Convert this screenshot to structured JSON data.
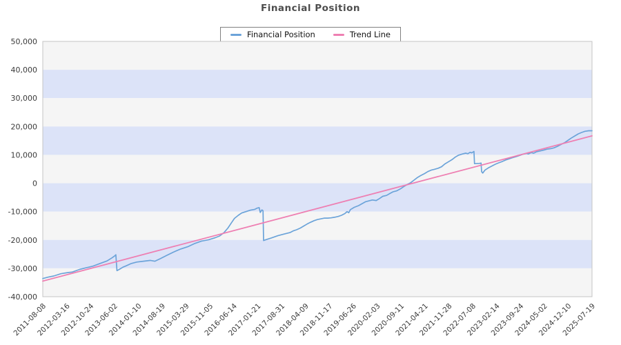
{
  "title": "Financial Position",
  "legend": {
    "items": [
      {
        "label": "Financial Position",
        "color": "#6BA3D9"
      },
      {
        "label": "Trend Line",
        "color": "#EE7FB2"
      }
    ]
  },
  "style": {
    "background": "#ffffff",
    "band_color_light": "#f5f5f5",
    "band_color_blue": "#dce3f8",
    "plot_border_color": "#c4c4c4",
    "axis_text_color": "#3a3a3a",
    "title_color": "#4d4d4d",
    "legend_border_color": "#7f7f7f"
  },
  "chart_data": {
    "type": "line",
    "title": "Financial Position",
    "xlabel": "",
    "ylabel": "",
    "grid": "alternating horizontal bands",
    "legend_position": "top-center",
    "ylim": [
      -40000,
      50000
    ],
    "y_tick_values": [
      50000,
      40000,
      30000,
      20000,
      10000,
      0,
      -10000,
      -20000,
      -30000,
      -40000
    ],
    "y_tick_labels": [
      "50,000",
      "40,000",
      "30,000",
      "20,000",
      "10,000",
      "0",
      "-10,000",
      "-20,000",
      "-30,000",
      "-40,000"
    ],
    "x_tick_labels": [
      "2011-08-08",
      "2012-03-16",
      "2012-10-24",
      "2013-06-02",
      "2014-01-10",
      "2014-08-19",
      "2015-03-29",
      "2015-11-05",
      "2016-06-14",
      "2017-01-21",
      "2017-08-31",
      "2018-04-09",
      "2018-11-17",
      "2019-06-26",
      "2020-02-03",
      "2020-09-11",
      "2021-04-21",
      "2021-11-28",
      "2022-07-08",
      "2023-02-14",
      "2023-09-24",
      "2024-05-02",
      "2024-12-10",
      "2025-07-19"
    ],
    "x_axis_note": "series x values are fractions of the date range 2011-08-08 (0.0) to 2025-07-19 (1.0)",
    "series": [
      {
        "name": "Financial Position",
        "color": "#6BA3D9",
        "width": 1.7,
        "points": [
          [
            0.0,
            -33600
          ],
          [
            0.01,
            -33100
          ],
          [
            0.02,
            -32700
          ],
          [
            0.033,
            -31900
          ],
          [
            0.045,
            -31500
          ],
          [
            0.054,
            -31300
          ],
          [
            0.067,
            -30400
          ],
          [
            0.079,
            -29800
          ],
          [
            0.092,
            -29200
          ],
          [
            0.104,
            -28300
          ],
          [
            0.117,
            -27400
          ],
          [
            0.126,
            -26300
          ],
          [
            0.131,
            -25600
          ],
          [
            0.133,
            -25200
          ],
          [
            0.135,
            -30800
          ],
          [
            0.14,
            -30300
          ],
          [
            0.146,
            -29600
          ],
          [
            0.152,
            -29100
          ],
          [
            0.161,
            -28300
          ],
          [
            0.171,
            -27800
          ],
          [
            0.183,
            -27500
          ],
          [
            0.196,
            -27200
          ],
          [
            0.204,
            -27500
          ],
          [
            0.214,
            -26600
          ],
          [
            0.226,
            -25400
          ],
          [
            0.239,
            -24200
          ],
          [
            0.251,
            -23200
          ],
          [
            0.264,
            -22400
          ],
          [
            0.276,
            -21300
          ],
          [
            0.289,
            -20400
          ],
          [
            0.302,
            -19900
          ],
          [
            0.314,
            -19200
          ],
          [
            0.322,
            -18600
          ],
          [
            0.33,
            -17400
          ],
          [
            0.337,
            -15800
          ],
          [
            0.344,
            -13800
          ],
          [
            0.349,
            -12400
          ],
          [
            0.356,
            -11300
          ],
          [
            0.362,
            -10500
          ],
          [
            0.37,
            -10000
          ],
          [
            0.378,
            -9500
          ],
          [
            0.386,
            -9200
          ],
          [
            0.39,
            -8800
          ],
          [
            0.394,
            -8600
          ],
          [
            0.396,
            -10300
          ],
          [
            0.399,
            -9400
          ],
          [
            0.401,
            -9700
          ],
          [
            0.402,
            -20200
          ],
          [
            0.406,
            -19900
          ],
          [
            0.416,
            -19300
          ],
          [
            0.428,
            -18500
          ],
          [
            0.44,
            -17900
          ],
          [
            0.45,
            -17400
          ],
          [
            0.456,
            -16800
          ],
          [
            0.462,
            -16400
          ],
          [
            0.469,
            -15800
          ],
          [
            0.475,
            -15100
          ],
          [
            0.481,
            -14400
          ],
          [
            0.487,
            -13800
          ],
          [
            0.494,
            -13200
          ],
          [
            0.5,
            -12800
          ],
          [
            0.513,
            -12300
          ],
          [
            0.519,
            -12300
          ],
          [
            0.525,
            -12200
          ],
          [
            0.531,
            -12000
          ],
          [
            0.538,
            -11700
          ],
          [
            0.544,
            -11300
          ],
          [
            0.55,
            -10700
          ],
          [
            0.554,
            -10000
          ],
          [
            0.557,
            -10400
          ],
          [
            0.56,
            -9300
          ],
          [
            0.567,
            -8500
          ],
          [
            0.575,
            -7900
          ],
          [
            0.588,
            -6500
          ],
          [
            0.6,
            -5900
          ],
          [
            0.607,
            -6100
          ],
          [
            0.613,
            -5400
          ],
          [
            0.619,
            -4600
          ],
          [
            0.626,
            -4300
          ],
          [
            0.632,
            -3600
          ],
          [
            0.638,
            -3000
          ],
          [
            0.644,
            -2700
          ],
          [
            0.651,
            -2000
          ],
          [
            0.657,
            -1200
          ],
          [
            0.663,
            -500
          ],
          [
            0.67,
            200
          ],
          [
            0.676,
            1100
          ],
          [
            0.682,
            2000
          ],
          [
            0.688,
            2700
          ],
          [
            0.695,
            3400
          ],
          [
            0.701,
            4100
          ],
          [
            0.707,
            4600
          ],
          [
            0.713,
            4900
          ],
          [
            0.72,
            5300
          ],
          [
            0.726,
            5800
          ],
          [
            0.732,
            6800
          ],
          [
            0.739,
            7600
          ],
          [
            0.745,
            8300
          ],
          [
            0.751,
            9200
          ],
          [
            0.757,
            9900
          ],
          [
            0.764,
            10300
          ],
          [
            0.77,
            10600
          ],
          [
            0.774,
            10400
          ],
          [
            0.778,
            10900
          ],
          [
            0.781,
            10700
          ],
          [
            0.785,
            11200
          ],
          [
            0.786,
            6900
          ],
          [
            0.795,
            7000
          ],
          [
            0.798,
            7100
          ],
          [
            0.799,
            4100
          ],
          [
            0.801,
            3600
          ],
          [
            0.805,
            4600
          ],
          [
            0.811,
            5400
          ],
          [
            0.818,
            6100
          ],
          [
            0.824,
            6700
          ],
          [
            0.83,
            7200
          ],
          [
            0.837,
            7700
          ],
          [
            0.843,
            8200
          ],
          [
            0.849,
            8600
          ],
          [
            0.855,
            9000
          ],
          [
            0.862,
            9400
          ],
          [
            0.868,
            9800
          ],
          [
            0.874,
            10200
          ],
          [
            0.881,
            10500
          ],
          [
            0.884,
            10300
          ],
          [
            0.889,
            10800
          ],
          [
            0.894,
            10600
          ],
          [
            0.899,
            11100
          ],
          [
            0.906,
            11400
          ],
          [
            0.912,
            11700
          ],
          [
            0.918,
            12000
          ],
          [
            0.925,
            12200
          ],
          [
            0.931,
            12500
          ],
          [
            0.937,
            13000
          ],
          [
            0.943,
            13600
          ],
          [
            0.95,
            14300
          ],
          [
            0.956,
            15100
          ],
          [
            0.962,
            15900
          ],
          [
            0.969,
            16700
          ],
          [
            0.975,
            17400
          ],
          [
            0.981,
            17900
          ],
          [
            0.987,
            18300
          ],
          [
            0.994,
            18500
          ],
          [
            1.0,
            18500
          ]
        ]
      },
      {
        "name": "Trend Line",
        "color": "#EE7FB2",
        "width": 1.8,
        "points": [
          [
            0.0,
            -34500
          ],
          [
            1.0,
            16700
          ]
        ]
      }
    ]
  }
}
